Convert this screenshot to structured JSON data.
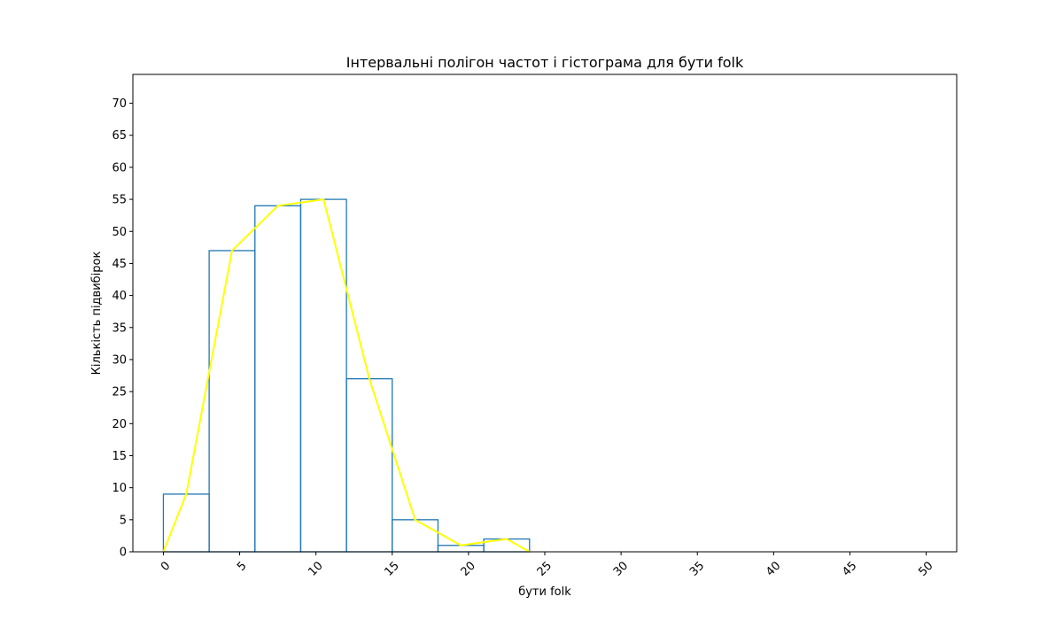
{
  "chart_data": {
    "type": "bar",
    "title": "Інтервальні полігон частот і гістограма для бути folk",
    "xlabel": "бути folk",
    "ylabel": "Кількість підвибірок",
    "xlim": [
      -2,
      52
    ],
    "ylim": [
      0,
      74.5
    ],
    "grid": false,
    "xticks": [
      0,
      5,
      10,
      15,
      20,
      25,
      30,
      35,
      40,
      45,
      50
    ],
    "xtick_labels": [
      "0",
      "5",
      "10",
      "15",
      "20",
      "25",
      "30",
      "35",
      "40",
      "45",
      "50"
    ],
    "yticks": [
      0,
      5,
      10,
      15,
      20,
      25,
      30,
      35,
      40,
      45,
      50,
      55,
      60,
      65,
      70
    ],
    "ytick_labels": [
      "0",
      "5",
      "10",
      "15",
      "20",
      "25",
      "30",
      "35",
      "40",
      "45",
      "50",
      "55",
      "60",
      "65",
      "70"
    ],
    "histogram": {
      "name": "гістограма",
      "color": "#1f77b4",
      "bin_edges": [
        0,
        3,
        6,
        9,
        12,
        15,
        18,
        21,
        24
      ],
      "counts": [
        9,
        47,
        54,
        55,
        27,
        5,
        1,
        2
      ]
    },
    "polygon": {
      "name": "полігон частот",
      "color": "#ffff00",
      "x": [
        0,
        1.5,
        4.5,
        7.5,
        10.5,
        13.5,
        16.5,
        19.5,
        22.5,
        24
      ],
      "y": [
        0,
        9,
        47,
        54,
        55,
        27,
        5,
        1,
        2,
        0
      ]
    }
  }
}
